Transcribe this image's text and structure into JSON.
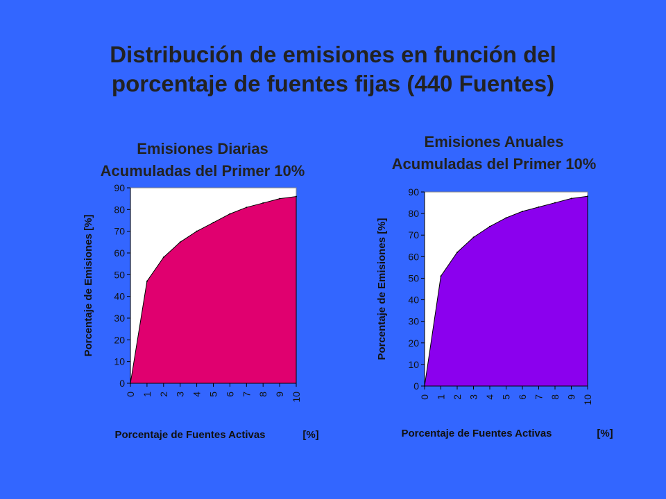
{
  "title": {
    "line1": "Distribución de emisiones en función del",
    "line2": "porcentaje de fuentes fijas (440 Fuentes)"
  },
  "colors": {
    "background": "#3366ff",
    "plot_background": "#ffffff",
    "daily_fill": "#e0006f",
    "annual_fill": "#8b00ee"
  },
  "chart_data": [
    {
      "type": "area",
      "title": [
        "Emisiones Diarias",
        "Acumuladas del Primer 10%"
      ],
      "xlabel": "Porcentaje de Fuentes Activas",
      "xlabel_unit": "[%]",
      "ylabel": "Porcentaje de Emisiones [%]",
      "x": [
        0,
        1,
        2,
        3,
        4,
        5,
        6,
        7,
        8,
        9,
        10
      ],
      "values": [
        0,
        47,
        58,
        65,
        70,
        74,
        78,
        81,
        83,
        85,
        86
      ],
      "xlim": [
        0,
        10
      ],
      "ylim": [
        0,
        90
      ],
      "yticks": [
        0,
        10,
        20,
        30,
        40,
        50,
        60,
        70,
        80,
        90
      ],
      "xticks": [
        "0",
        "1",
        "2",
        "3",
        "4",
        "5",
        "6",
        "7",
        "8",
        "9",
        "10"
      ],
      "grid": false,
      "legend": "none",
      "fill": "#e0006f"
    },
    {
      "type": "area",
      "title": [
        "Emisiones Anuales",
        "Acumuladas del Primer 10%"
      ],
      "xlabel": "Porcentaje de Fuentes Activas",
      "xlabel_unit": "[%]",
      "ylabel": "Porcentaje de Emisiones [%]",
      "x": [
        0,
        1,
        2,
        3,
        4,
        5,
        6,
        7,
        8,
        9,
        10
      ],
      "values": [
        0,
        51,
        62,
        69,
        74,
        78,
        81,
        83,
        85,
        87,
        88
      ],
      "xlim": [
        0,
        10
      ],
      "ylim": [
        0,
        90
      ],
      "yticks": [
        0,
        10,
        20,
        30,
        40,
        50,
        60,
        70,
        80,
        90
      ],
      "xticks": [
        "0",
        "1",
        "2",
        "3",
        "4",
        "5",
        "6",
        "7",
        "8",
        "9",
        "10"
      ],
      "grid": false,
      "legend": "none",
      "fill": "#8b00ee"
    }
  ]
}
